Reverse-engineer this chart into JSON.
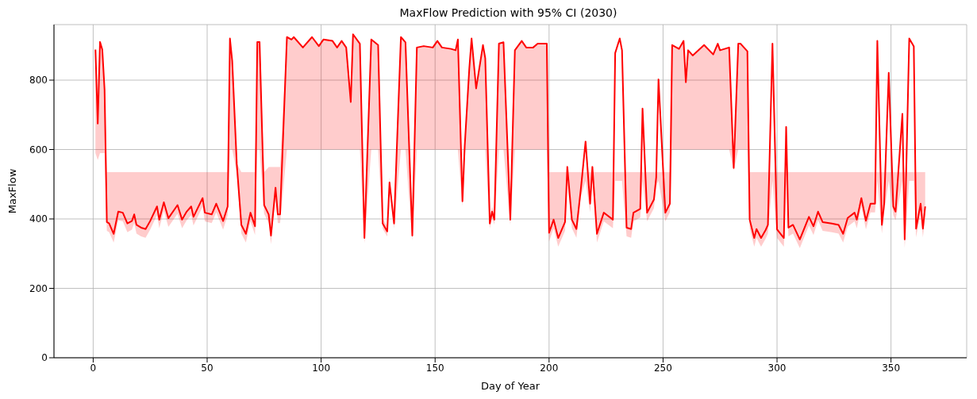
{
  "chart_data": {
    "type": "line",
    "title": "MaxFlow Prediction with 95% CI (2030)",
    "xlabel": "Day of Year",
    "ylabel": "MaxFlow",
    "x": [
      1,
      2,
      3,
      4,
      5,
      6,
      7,
      9,
      11,
      13,
      15,
      17,
      18,
      19,
      21,
      23,
      25,
      28,
      29,
      31,
      33,
      37,
      39,
      41,
      43,
      44,
      48,
      49,
      52,
      54,
      57,
      59,
      60,
      61,
      63,
      65,
      67,
      69,
      71,
      72,
      73,
      75,
      77,
      78,
      80,
      81,
      82,
      85,
      87,
      88,
      92,
      96,
      99,
      101,
      105,
      107,
      109,
      111,
      113,
      114,
      117,
      119,
      122,
      125,
      127,
      129,
      130,
      132,
      135,
      137,
      140,
      142,
      145,
      149,
      151,
      153,
      157,
      159,
      160,
      162,
      163,
      165,
      166,
      168,
      171,
      172,
      174,
      175,
      176,
      178,
      180,
      183,
      185,
      188,
      190,
      193,
      195,
      197,
      199,
      200,
      202,
      204,
      207,
      208,
      210,
      212,
      214,
      216,
      218,
      219,
      221,
      224,
      228,
      229,
      231,
      232,
      234,
      236,
      237,
      240,
      241,
      243,
      246,
      247,
      248,
      251,
      253,
      254,
      257,
      259,
      260,
      261,
      263,
      268,
      272,
      274,
      275,
      279,
      281,
      283,
      284,
      287,
      288,
      290,
      291,
      293,
      295,
      296,
      298,
      300,
      303,
      304,
      305,
      307,
      310,
      314,
      316,
      318,
      320,
      324,
      327,
      329,
      331,
      334,
      335,
      337,
      339,
      341,
      343,
      344,
      346,
      347,
      349,
      351,
      352,
      355,
      356,
      358,
      360,
      361,
      363,
      364,
      365
    ],
    "series": [
      {
        "color": "#ff0000",
        "values": [
          888,
          675,
          910,
          888,
          772,
          391,
          387,
          357,
          421,
          418,
          387,
          394,
          413,
          383,
          375,
          371,
          394,
          436,
          398,
          448,
          402,
          440,
          398,
          421,
          436,
          406,
          460,
          418,
          413,
          444,
          394,
          436,
          920,
          855,
          558,
          383,
          357,
          418,
          379,
          910,
          910,
          440,
          413,
          352,
          490,
          413,
          413,
          924,
          917,
          924,
          894,
          924,
          898,
          917,
          913,
          894,
          913,
          894,
          737,
          932,
          905,
          345,
          917,
          901,
          387,
          364,
          505,
          387,
          924,
          909,
          352,
          894,
          898,
          894,
          913,
          894,
          890,
          886,
          917,
          451,
          611,
          833,
          920,
          776,
          901,
          863,
          387,
          421,
          398,
          905,
          909,
          398,
          886,
          913,
          894,
          894,
          905,
          905,
          905,
          360,
          398,
          345,
          391,
          550,
          398,
          371,
          490,
          623,
          444,
          550,
          357,
          418,
          398,
          878,
          920,
          886,
          375,
          371,
          418,
          429,
          718,
          418,
          456,
          520,
          802,
          418,
          444,
          901,
          890,
          913,
          794,
          886,
          871,
          901,
          874,
          905,
          886,
          894,
          547,
          905,
          905,
          883,
          398,
          345,
          371,
          345,
          368,
          383,
          905,
          370,
          345,
          665,
          375,
          383,
          341,
          406,
          379,
          421,
          391,
          387,
          383,
          357,
          403,
          418,
          398,
          460,
          395,
          444,
          444,
          913,
          383,
          444,
          821,
          436,
          421,
          703,
          341,
          920,
          897,
          372,
          444,
          372,
          436
        ],
        "lower": [
          590,
          570,
          590,
          590,
          590,
          366,
          362,
          332,
          396,
          393,
          362,
          369,
          388,
          358,
          350,
          346,
          369,
          411,
          373,
          423,
          377,
          415,
          373,
          396,
          411,
          381,
          435,
          393,
          388,
          419,
          369,
          411,
          600,
          600,
          533,
          358,
          332,
          393,
          354,
          600,
          600,
          415,
          388,
          327,
          465,
          388,
          388,
          600,
          600,
          600,
          600,
          600,
          600,
          600,
          600,
          600,
          600,
          600,
          600,
          600,
          600,
          330,
          600,
          600,
          372,
          349,
          490,
          372,
          600,
          600,
          337,
          600,
          600,
          600,
          600,
          600,
          600,
          600,
          600,
          436,
          600,
          600,
          600,
          600,
          600,
          600,
          372,
          406,
          383,
          600,
          600,
          383,
          600,
          600,
          600,
          600,
          600,
          600,
          600,
          335,
          373,
          320,
          366,
          510,
          373,
          346,
          465,
          510,
          419,
          510,
          332,
          393,
          373,
          510,
          510,
          510,
          350,
          346,
          393,
          404,
          510,
          393,
          431,
          495,
          510,
          393,
          419,
          600,
          600,
          600,
          600,
          600,
          600,
          600,
          600,
          600,
          600,
          600,
          540,
          600,
          600,
          600,
          373,
          320,
          346,
          320,
          343,
          358,
          510,
          345,
          320,
          510,
          350,
          358,
          316,
          381,
          354,
          396,
          366,
          362,
          358,
          332,
          378,
          393,
          373,
          435,
          370,
          419,
          419,
          510,
          358,
          419,
          510,
          411,
          396,
          510,
          316,
          510,
          510,
          347,
          419,
          347,
          411
        ],
        "upper": [
          888,
          675,
          910,
          888,
          772,
          535,
          535,
          535,
          535,
          535,
          535,
          535,
          535,
          535,
          535,
          535,
          535,
          535,
          535,
          535,
          535,
          535,
          535,
          535,
          535,
          535,
          535,
          535,
          535,
          535,
          535,
          535,
          920,
          855,
          560,
          535,
          535,
          535,
          535,
          910,
          910,
          535,
          550,
          550,
          550,
          550,
          550,
          924,
          917,
          924,
          894,
          924,
          898,
          917,
          913,
          894,
          913,
          894,
          737,
          932,
          905,
          360,
          917,
          901,
          402,
          379,
          520,
          402,
          924,
          909,
          367,
          894,
          898,
          894,
          913,
          894,
          890,
          886,
          917,
          466,
          611,
          833,
          920,
          776,
          901,
          863,
          402,
          436,
          413,
          905,
          909,
          413,
          886,
          913,
          894,
          894,
          905,
          905,
          905,
          535,
          535,
          535,
          535,
          535,
          535,
          535,
          535,
          535,
          535,
          535,
          535,
          535,
          535,
          535,
          535,
          535,
          535,
          535,
          535,
          535,
          535,
          535,
          535,
          535,
          535,
          535,
          535,
          901,
          890,
          913,
          794,
          886,
          871,
          901,
          874,
          905,
          886,
          894,
          600,
          905,
          905,
          883,
          535,
          535,
          535,
          535,
          535,
          535,
          535,
          535,
          535,
          535,
          535,
          535,
          535,
          535,
          535,
          535,
          535,
          535,
          535,
          535,
          535,
          535,
          535,
          535,
          535,
          535,
          535,
          535,
          535,
          535,
          535,
          535,
          535,
          535,
          535,
          535,
          535,
          535,
          535,
          535,
          535
        ]
      }
    ],
    "xlim": [
      -17.2,
      383.2
    ],
    "xticks": [
      0,
      50,
      100,
      150,
      200,
      250,
      300,
      350
    ],
    "ylim": [
      0,
      960
    ],
    "yticks": [
      0,
      200,
      400,
      600,
      800
    ],
    "grid": true
  }
}
